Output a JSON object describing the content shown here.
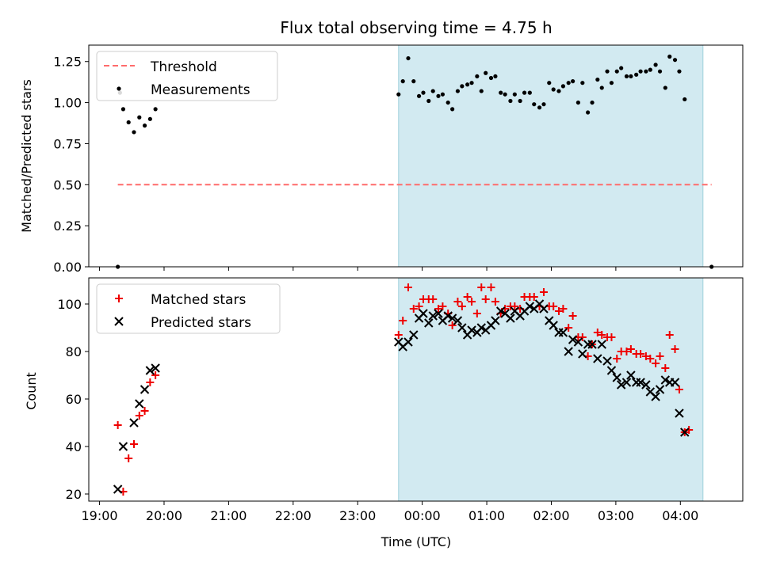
{
  "title": "Flux total observing time = 4.75 h",
  "colors": {
    "threshold": "#ff6b6b",
    "measurements": "#000000",
    "matched": "#ee0000",
    "predicted": "#000000",
    "span_fill": "#add8e6"
  },
  "chart_data": [
    {
      "type": "scatter",
      "panel": "top",
      "ylabel": "Matched/Predicted stars",
      "ylim": [
        0.0,
        1.35
      ],
      "yticks": [
        "0.00",
        "0.25",
        "0.50",
        "0.75",
        "1.00",
        "1.25"
      ],
      "ytick_values": [
        0.0,
        0.25,
        0.5,
        0.75,
        1.0,
        1.25
      ],
      "xlim": [
        "18:50",
        "04:58"
      ],
      "shaded_span": [
        "23:38",
        "04:21"
      ],
      "legend": {
        "placement": "upper left",
        "entries": [
          "Threshold",
          "Measurements"
        ]
      },
      "threshold": {
        "name": "Threshold",
        "value": 0.5,
        "x": [
          "19:17",
          "04:29"
        ],
        "style": "dashed"
      },
      "series": [
        {
          "name": "Measurements",
          "points": [
            [
              "19:17",
              0.0
            ],
            [
              "19:19",
              1.06
            ],
            [
              "19:22",
              0.96
            ],
            [
              "19:27",
              0.88
            ],
            [
              "19:32",
              0.82
            ],
            [
              "19:37",
              0.91
            ],
            [
              "19:42",
              0.86
            ],
            [
              "19:47",
              0.9
            ],
            [
              "19:52",
              0.96
            ],
            [
              "23:38",
              1.05
            ],
            [
              "23:42",
              1.13
            ],
            [
              "23:47",
              1.27
            ],
            [
              "23:52",
              1.13
            ],
            [
              "23:57",
              1.04
            ],
            [
              "00:01",
              1.06
            ],
            [
              "00:06",
              1.01
            ],
            [
              "00:10",
              1.07
            ],
            [
              "00:15",
              1.04
            ],
            [
              "00:19",
              1.05
            ],
            [
              "00:24",
              1.0
            ],
            [
              "00:28",
              0.96
            ],
            [
              "00:33",
              1.07
            ],
            [
              "00:37",
              1.1
            ],
            [
              "00:42",
              1.11
            ],
            [
              "00:46",
              1.12
            ],
            [
              "00:51",
              1.16
            ],
            [
              "00:55",
              1.07
            ],
            [
              "00:59",
              1.18
            ],
            [
              "01:04",
              1.15
            ],
            [
              "01:08",
              1.16
            ],
            [
              "01:13",
              1.06
            ],
            [
              "01:17",
              1.05
            ],
            [
              "01:22",
              1.01
            ],
            [
              "01:26",
              1.05
            ],
            [
              "01:31",
              1.01
            ],
            [
              "01:35",
              1.06
            ],
            [
              "01:40",
              1.06
            ],
            [
              "01:44",
              0.99
            ],
            [
              "01:49",
              0.97
            ],
            [
              "01:53",
              0.99
            ],
            [
              "01:58",
              1.12
            ],
            [
              "02:02",
              1.08
            ],
            [
              "02:07",
              1.07
            ],
            [
              "02:11",
              1.1
            ],
            [
              "02:16",
              1.12
            ],
            [
              "02:20",
              1.13
            ],
            [
              "02:25",
              1.0
            ],
            [
              "02:29",
              1.12
            ],
            [
              "02:34",
              0.94
            ],
            [
              "02:38",
              1.0
            ],
            [
              "02:43",
              1.14
            ],
            [
              "02:47",
              1.09
            ],
            [
              "02:52",
              1.19
            ],
            [
              "02:56",
              1.12
            ],
            [
              "03:01",
              1.19
            ],
            [
              "03:05",
              1.21
            ],
            [
              "03:10",
              1.16
            ],
            [
              "03:14",
              1.16
            ],
            [
              "03:19",
              1.17
            ],
            [
              "03:23",
              1.19
            ],
            [
              "03:28",
              1.19
            ],
            [
              "03:32",
              1.2
            ],
            [
              "03:37",
              1.23
            ],
            [
              "03:41",
              1.19
            ],
            [
              "03:46",
              1.09
            ],
            [
              "03:50",
              1.28
            ],
            [
              "03:55",
              1.26
            ],
            [
              "03:59",
              1.19
            ],
            [
              "04:04",
              1.02
            ],
            [
              "04:29",
              0.0
            ]
          ]
        }
      ]
    },
    {
      "type": "scatter",
      "panel": "bottom",
      "ylabel": "Count",
      "xlabel": "Time (UTC)",
      "ylim": [
        17,
        111
      ],
      "yticks": [
        "20",
        "40",
        "60",
        "80",
        "100"
      ],
      "ytick_values": [
        20,
        40,
        60,
        80,
        100
      ],
      "xlim": [
        "18:50",
        "04:58"
      ],
      "xticks": [
        "19:00",
        "20:00",
        "21:00",
        "22:00",
        "23:00",
        "00:00",
        "01:00",
        "02:00",
        "03:00",
        "04:00"
      ],
      "shaded_span": [
        "23:38",
        "04:21"
      ],
      "legend": {
        "placement": "upper left",
        "entries": [
          "Matched stars",
          "Predicted stars"
        ]
      },
      "series": [
        {
          "name": "Matched stars",
          "marker": "plus",
          "points": [
            [
              "19:17",
              49
            ],
            [
              "19:22",
              21
            ],
            [
              "19:27",
              35
            ],
            [
              "19:32",
              41
            ],
            [
              "19:37",
              53
            ],
            [
              "19:42",
              55
            ],
            [
              "19:47",
              67
            ],
            [
              "19:52",
              70
            ],
            [
              "23:38",
              87
            ],
            [
              "23:42",
              93
            ],
            [
              "23:47",
              107
            ],
            [
              "23:52",
              98
            ],
            [
              "23:57",
              99
            ],
            [
              "00:01",
              102
            ],
            [
              "00:06",
              102
            ],
            [
              "00:10",
              102
            ],
            [
              "00:15",
              98
            ],
            [
              "00:19",
              99
            ],
            [
              "00:24",
              96
            ],
            [
              "00:28",
              91
            ],
            [
              "00:33",
              101
            ],
            [
              "00:37",
              99
            ],
            [
              "00:42",
              103
            ],
            [
              "00:46",
              101
            ],
            [
              "00:51",
              96
            ],
            [
              "00:55",
              107
            ],
            [
              "00:59",
              102
            ],
            [
              "01:04",
              107
            ],
            [
              "01:08",
              101
            ],
            [
              "01:13",
              96
            ],
            [
              "01:17",
              98
            ],
            [
              "01:22",
              99
            ],
            [
              "01:26",
              99
            ],
            [
              "01:31",
              98
            ],
            [
              "01:35",
              103
            ],
            [
              "01:40",
              103
            ],
            [
              "01:44",
              103
            ],
            [
              "01:49",
              99
            ],
            [
              "01:53",
              105
            ],
            [
              "01:58",
              99
            ],
            [
              "02:02",
              99
            ],
            [
              "02:07",
              97
            ],
            [
              "02:11",
              98
            ],
            [
              "02:16",
              90
            ],
            [
              "02:20",
              95
            ],
            [
              "02:25",
              86
            ],
            [
              "02:29",
              86
            ],
            [
              "02:34",
              78
            ],
            [
              "02:38",
              83
            ],
            [
              "02:43",
              88
            ],
            [
              "02:47",
              87
            ],
            [
              "02:52",
              86
            ],
            [
              "02:56",
              86
            ],
            [
              "03:01",
              77
            ],
            [
              "03:05",
              80
            ],
            [
              "03:10",
              80
            ],
            [
              "03:14",
              81
            ],
            [
              "03:19",
              79
            ],
            [
              "03:23",
              79
            ],
            [
              "03:28",
              78
            ],
            [
              "03:32",
              77
            ],
            [
              "03:37",
              75
            ],
            [
              "03:41",
              78
            ],
            [
              "03:46",
              73
            ],
            [
              "03:50",
              87
            ],
            [
              "03:55",
              81
            ],
            [
              "03:59",
              64
            ],
            [
              "04:04",
              46
            ],
            [
              "04:08",
              47
            ]
          ]
        },
        {
          "name": "Predicted stars",
          "marker": "x",
          "points": [
            [
              "19:17",
              22
            ],
            [
              "19:22",
              40
            ],
            [
              "19:32",
              50
            ],
            [
              "19:37",
              58
            ],
            [
              "19:42",
              64
            ],
            [
              "19:47",
              72
            ],
            [
              "19:52",
              73
            ],
            [
              "23:38",
              84
            ],
            [
              "23:42",
              82
            ],
            [
              "23:47",
              84
            ],
            [
              "23:52",
              87
            ],
            [
              "23:57",
              94
            ],
            [
              "00:01",
              96
            ],
            [
              "00:06",
              92
            ],
            [
              "00:10",
              95
            ],
            [
              "00:15",
              96
            ],
            [
              "00:19",
              93
            ],
            [
              "00:24",
              95
            ],
            [
              "00:28",
              94
            ],
            [
              "00:33",
              93
            ],
            [
              "00:37",
              90
            ],
            [
              "00:42",
              87
            ],
            [
              "00:46",
              89
            ],
            [
              "00:51",
              88
            ],
            [
              "00:55",
              90
            ],
            [
              "00:59",
              89
            ],
            [
              "01:04",
              91
            ],
            [
              "01:08",
              93
            ],
            [
              "01:13",
              97
            ],
            [
              "01:17",
              96
            ],
            [
              "01:22",
              94
            ],
            [
              "01:26",
              97
            ],
            [
              "01:31",
              95
            ],
            [
              "01:35",
              97
            ],
            [
              "01:40",
              99
            ],
            [
              "01:44",
              98
            ],
            [
              "01:49",
              100
            ],
            [
              "01:53",
              98
            ],
            [
              "01:58",
              93
            ],
            [
              "02:02",
              91
            ],
            [
              "02:07",
              88
            ],
            [
              "02:11",
              88
            ],
            [
              "02:16",
              80
            ],
            [
              "02:20",
              85
            ],
            [
              "02:25",
              84
            ],
            [
              "02:29",
              79
            ],
            [
              "02:34",
              83
            ],
            [
              "02:38",
              83
            ],
            [
              "02:43",
              77
            ],
            [
              "02:47",
              83
            ],
            [
              "02:52",
              76
            ],
            [
              "02:56",
              72
            ],
            [
              "03:01",
              69
            ],
            [
              "03:05",
              66
            ],
            [
              "03:10",
              67
            ],
            [
              "03:14",
              70
            ],
            [
              "03:19",
              67
            ],
            [
              "03:23",
              67
            ],
            [
              "03:28",
              66
            ],
            [
              "03:32",
              63
            ],
            [
              "03:37",
              61
            ],
            [
              "03:41",
              64
            ],
            [
              "03:46",
              68
            ],
            [
              "03:50",
              67
            ],
            [
              "03:55",
              67
            ],
            [
              "03:59",
              54
            ],
            [
              "04:04",
              46
            ]
          ]
        }
      ]
    }
  ]
}
